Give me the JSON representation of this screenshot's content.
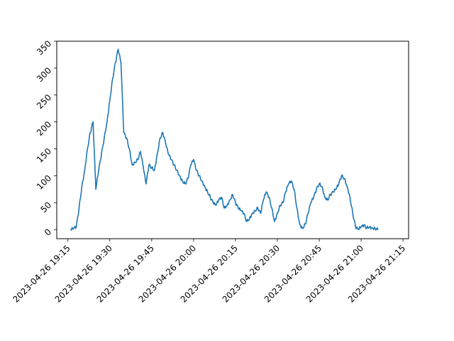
{
  "chart_data": {
    "type": "line",
    "title": "",
    "xlabel": "",
    "ylabel": "",
    "x_range": [
      "2023-04-26 19:11",
      "2023-04-26 21:17"
    ],
    "ylim": [
      -17,
      350
    ],
    "grid": false,
    "legend": "none",
    "x_ticks": [
      "2023-04-26 19:15",
      "2023-04-26 19:30",
      "2023-04-26 19:45",
      "2023-04-26 20:00",
      "2023-04-26 20:15",
      "2023-04-26 20:30",
      "2023-04-26 20:45",
      "2023-04-26 21:00",
      "2023-04-26 21:15"
    ],
    "y_ticks": [
      0,
      50,
      100,
      150,
      200,
      250,
      300,
      350
    ],
    "series": [
      {
        "color": "#1f77b4",
        "x": [
          "2023-04-26 19:16",
          "2023-04-26 19:17",
          "2023-04-26 19:18",
          "2023-04-26 19:19",
          "2023-04-26 19:20",
          "2023-04-26 19:21",
          "2023-04-26 19:22",
          "2023-04-26 19:23",
          "2023-04-26 19:24",
          "2023-04-26 19:25",
          "2023-04-26 19:26",
          "2023-04-26 19:27",
          "2023-04-26 19:28",
          "2023-04-26 19:29",
          "2023-04-26 19:30",
          "2023-04-26 19:31",
          "2023-04-26 19:32",
          "2023-04-26 19:33",
          "2023-04-26 19:34",
          "2023-04-26 19:35",
          "2023-04-26 19:36",
          "2023-04-26 19:37",
          "2023-04-26 19:38",
          "2023-04-26 19:39",
          "2023-04-26 19:40",
          "2023-04-26 19:41",
          "2023-04-26 19:42",
          "2023-04-26 19:43",
          "2023-04-26 19:44",
          "2023-04-26 19:45",
          "2023-04-26 19:46",
          "2023-04-26 19:47",
          "2023-04-26 19:48",
          "2023-04-26 19:49",
          "2023-04-26 19:50",
          "2023-04-26 19:51",
          "2023-04-26 19:52",
          "2023-04-26 19:53",
          "2023-04-26 19:54",
          "2023-04-26 19:55",
          "2023-04-26 19:56",
          "2023-04-26 19:57",
          "2023-04-26 19:58",
          "2023-04-26 19:59",
          "2023-04-26 20:00",
          "2023-04-26 20:01",
          "2023-04-26 20:02",
          "2023-04-26 20:03",
          "2023-04-26 20:04",
          "2023-04-26 20:05",
          "2023-04-26 20:06",
          "2023-04-26 20:07",
          "2023-04-26 20:08",
          "2023-04-26 20:09",
          "2023-04-26 20:10",
          "2023-04-26 20:11",
          "2023-04-26 20:12",
          "2023-04-26 20:13",
          "2023-04-26 20:14",
          "2023-04-26 20:15",
          "2023-04-26 20:16",
          "2023-04-26 20:17",
          "2023-04-26 20:18",
          "2023-04-26 20:19",
          "2023-04-26 20:20",
          "2023-04-26 20:21",
          "2023-04-26 20:22",
          "2023-04-26 20:23",
          "2023-04-26 20:24",
          "2023-04-26 20:25",
          "2023-04-26 20:26",
          "2023-04-26 20:27",
          "2023-04-26 20:28",
          "2023-04-26 20:29",
          "2023-04-26 20:30",
          "2023-04-26 20:31",
          "2023-04-26 20:32",
          "2023-04-26 20:33",
          "2023-04-26 20:34",
          "2023-04-26 20:35",
          "2023-04-26 20:36",
          "2023-04-26 20:37",
          "2023-04-26 20:38",
          "2023-04-26 20:39",
          "2023-04-26 20:40",
          "2023-04-26 20:41",
          "2023-04-26 20:42",
          "2023-04-26 20:43",
          "2023-04-26 20:44",
          "2023-04-26 20:45",
          "2023-04-26 20:46",
          "2023-04-26 20:47",
          "2023-04-26 20:48",
          "2023-04-26 20:49",
          "2023-04-26 20:50",
          "2023-04-26 20:51",
          "2023-04-26 20:52",
          "2023-04-26 20:53",
          "2023-04-26 20:54",
          "2023-04-26 20:55",
          "2023-04-26 20:56",
          "2023-04-26 20:57",
          "2023-04-26 20:58",
          "2023-04-26 20:59",
          "2023-04-26 21:00",
          "2023-04-26 21:01",
          "2023-04-26 21:02",
          "2023-04-26 21:03",
          "2023-04-26 21:04",
          "2023-04-26 21:05",
          "2023-04-26 21:06"
        ],
        "y": [
          0,
          2,
          5,
          40,
          80,
          110,
          150,
          180,
          200,
          75,
          110,
          140,
          170,
          200,
          240,
          280,
          310,
          335,
          310,
          180,
          170,
          150,
          120,
          125,
          130,
          145,
          115,
          85,
          120,
          115,
          110,
          140,
          170,
          180,
          160,
          140,
          130,
          120,
          110,
          100,
          90,
          85,
          95,
          120,
          130,
          110,
          100,
          90,
          80,
          70,
          60,
          50,
          45,
          55,
          60,
          40,
          45,
          55,
          65,
          50,
          40,
          35,
          30,
          15,
          20,
          30,
          35,
          40,
          30,
          55,
          70,
          60,
          40,
          15,
          30,
          45,
          50,
          70,
          85,
          90,
          75,
          40,
          10,
          2,
          10,
          30,
          50,
          60,
          75,
          85,
          80,
          60,
          55,
          65,
          70,
          75,
          85,
          100,
          95,
          80,
          60,
          30,
          5,
          0,
          5,
          8,
          3,
          5,
          3,
          2,
          0
        ]
      }
    ]
  }
}
